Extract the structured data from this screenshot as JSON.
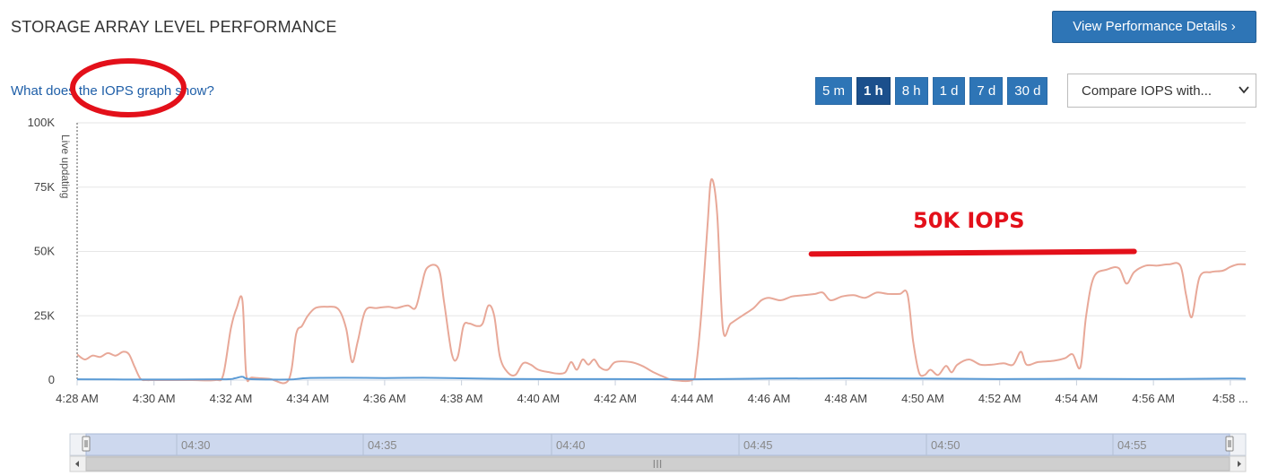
{
  "header": {
    "title": "STORAGE ARRAY LEVEL PERFORMANCE",
    "details_button": "View Performance Details ›"
  },
  "toolbar": {
    "help_link": "What does the IOPS graph show?",
    "ranges": [
      {
        "label": "5 m",
        "active": false
      },
      {
        "label": "1 h",
        "active": true
      },
      {
        "label": "8 h",
        "active": false
      },
      {
        "label": "1 d",
        "active": false
      },
      {
        "label": "7 d",
        "active": false
      },
      {
        "label": "30 d",
        "active": false
      }
    ],
    "compare": {
      "label": "Compare IOPS with...",
      "icon": "chevron-down-icon"
    }
  },
  "chart_data": {
    "type": "line",
    "y_ticks": [
      {
        "value": 0,
        "label": "0"
      },
      {
        "value": 25000,
        "label": "25K"
      },
      {
        "value": 50000,
        "label": "50K"
      },
      {
        "value": 75000,
        "label": "75K"
      },
      {
        "value": 100000,
        "label": "100K"
      }
    ],
    "ylim": [
      0,
      100000
    ],
    "x_unit": "minutes after 4:28 AM",
    "xlim": [
      0,
      30.4
    ],
    "x_ticks": [
      {
        "value": 0,
        "label": "4:28 AM"
      },
      {
        "value": 2,
        "label": "4:30 AM"
      },
      {
        "value": 4,
        "label": "4:32 AM"
      },
      {
        "value": 6,
        "label": "4:34 AM"
      },
      {
        "value": 8,
        "label": "4:36 AM"
      },
      {
        "value": 10,
        "label": "4:38 AM"
      },
      {
        "value": 12,
        "label": "4:40 AM"
      },
      {
        "value": 14,
        "label": "4:42 AM"
      },
      {
        "value": 16,
        "label": "4:44 AM"
      },
      {
        "value": 18,
        "label": "4:46 AM"
      },
      {
        "value": 20,
        "label": "4:48 AM"
      },
      {
        "value": 22,
        "label": "4:50 AM"
      },
      {
        "value": 24,
        "label": "4:52 AM"
      },
      {
        "value": 26,
        "label": "4:54 AM"
      },
      {
        "value": 28,
        "label": "4:56 AM"
      },
      {
        "value": 30,
        "label": "4:58 ..."
      }
    ],
    "live_label": "Live updating",
    "grid": true,
    "series": [
      {
        "color": "#e8a898",
        "points": [
          [
            0,
            10000
          ],
          [
            0.2,
            8000
          ],
          [
            0.4,
            9500
          ],
          [
            0.6,
            9000
          ],
          [
            0.8,
            10500
          ],
          [
            1,
            9500
          ],
          [
            1.2,
            11000
          ],
          [
            1.35,
            10000
          ],
          [
            1.5,
            5000
          ],
          [
            1.65,
            500
          ],
          [
            1.8,
            0
          ],
          [
            2,
            0
          ],
          [
            2.5,
            0
          ],
          [
            3,
            0
          ],
          [
            3.6,
            0
          ],
          [
            3.8,
            2000
          ],
          [
            4,
            20000
          ],
          [
            4.15,
            28000
          ],
          [
            4.3,
            31000
          ],
          [
            4.4,
            2000
          ],
          [
            4.55,
            1000
          ],
          [
            5,
            500
          ],
          [
            5.5,
            0
          ],
          [
            5.7,
            18000
          ],
          [
            5.85,
            21000
          ],
          [
            6,
            25000
          ],
          [
            6.2,
            28000
          ],
          [
            6.5,
            28500
          ],
          [
            6.8,
            27500
          ],
          [
            7,
            20000
          ],
          [
            7.15,
            7000
          ],
          [
            7.3,
            15000
          ],
          [
            7.5,
            27000
          ],
          [
            7.8,
            28000
          ],
          [
            8.1,
            28500
          ],
          [
            8.3,
            28000
          ],
          [
            8.6,
            29000
          ],
          [
            8.8,
            28000
          ],
          [
            8.95,
            36000
          ],
          [
            9.1,
            43500
          ],
          [
            9.4,
            43500
          ],
          [
            9.55,
            30000
          ],
          [
            9.75,
            10000
          ],
          [
            9.9,
            9000
          ],
          [
            10.05,
            21000
          ],
          [
            10.2,
            22000
          ],
          [
            10.4,
            21000
          ],
          [
            10.55,
            22000
          ],
          [
            10.7,
            29000
          ],
          [
            10.85,
            25000
          ],
          [
            11,
            9000
          ],
          [
            11.2,
            3000
          ],
          [
            11.4,
            2000
          ],
          [
            11.6,
            6500
          ],
          [
            11.8,
            6000
          ],
          [
            12,
            4000
          ],
          [
            12.3,
            3000
          ],
          [
            12.5,
            2500
          ],
          [
            12.7,
            3000
          ],
          [
            12.85,
            7000
          ],
          [
            13,
            4000
          ],
          [
            13.15,
            8000
          ],
          [
            13.3,
            6000
          ],
          [
            13.45,
            8000
          ],
          [
            13.6,
            5000
          ],
          [
            13.8,
            4000
          ],
          [
            14,
            7000
          ],
          [
            14.4,
            7000
          ],
          [
            14.7,
            5500
          ],
          [
            15,
            3000
          ],
          [
            15.3,
            1000
          ],
          [
            15.5,
            0
          ],
          [
            16,
            0
          ],
          [
            16.1,
            5000
          ],
          [
            16.25,
            28000
          ],
          [
            16.4,
            60000
          ],
          [
            16.5,
            78000
          ],
          [
            16.65,
            65000
          ],
          [
            16.8,
            20000
          ],
          [
            17,
            22000
          ],
          [
            17.3,
            25000
          ],
          [
            17.6,
            28000
          ],
          [
            17.8,
            31000
          ],
          [
            18,
            32000
          ],
          [
            18.3,
            31000
          ],
          [
            18.6,
            32500
          ],
          [
            18.9,
            33000
          ],
          [
            19.2,
            33500
          ],
          [
            19.4,
            34000
          ],
          [
            19.6,
            31000
          ],
          [
            19.9,
            32500
          ],
          [
            20.2,
            33000
          ],
          [
            20.5,
            32000
          ],
          [
            20.8,
            34000
          ],
          [
            21.1,
            33500
          ],
          [
            21.4,
            33500
          ],
          [
            21.6,
            33500
          ],
          [
            21.75,
            15000
          ],
          [
            21.9,
            3000
          ],
          [
            22.05,
            2000
          ],
          [
            22.2,
            4000
          ],
          [
            22.4,
            2000
          ],
          [
            22.6,
            5500
          ],
          [
            22.75,
            3000
          ],
          [
            22.9,
            6000
          ],
          [
            23.2,
            8000
          ],
          [
            23.5,
            6000
          ],
          [
            23.8,
            6000
          ],
          [
            24.1,
            6500
          ],
          [
            24.35,
            6000
          ],
          [
            24.55,
            11000
          ],
          [
            24.7,
            6000
          ],
          [
            25,
            7000
          ],
          [
            25.4,
            7500
          ],
          [
            25.7,
            8500
          ],
          [
            25.9,
            10000
          ],
          [
            26.1,
            5000
          ],
          [
            26.25,
            25000
          ],
          [
            26.45,
            40000
          ],
          [
            26.8,
            43000
          ],
          [
            27.1,
            43500
          ],
          [
            27.3,
            37500
          ],
          [
            27.5,
            42000
          ],
          [
            27.8,
            44500
          ],
          [
            28.1,
            44500
          ],
          [
            28.4,
            45000
          ],
          [
            28.7,
            44500
          ],
          [
            28.85,
            33000
          ],
          [
            29,
            24500
          ],
          [
            29.2,
            40000
          ],
          [
            29.5,
            42000
          ],
          [
            29.8,
            42500
          ],
          [
            30,
            44000
          ],
          [
            30.2,
            45000
          ],
          [
            30.4,
            45000
          ]
        ]
      },
      {
        "color": "#5b9bd5",
        "points": [
          [
            0,
            300
          ],
          [
            2,
            200
          ],
          [
            3.8,
            300
          ],
          [
            4.1,
            700
          ],
          [
            4.3,
            1300
          ],
          [
            4.5,
            400
          ],
          [
            5.5,
            200
          ],
          [
            6,
            800
          ],
          [
            7,
            900
          ],
          [
            8,
            800
          ],
          [
            9,
            900
          ],
          [
            10,
            700
          ],
          [
            11,
            500
          ],
          [
            12,
            400
          ],
          [
            14,
            400
          ],
          [
            16,
            300
          ],
          [
            18,
            600
          ],
          [
            20,
            700
          ],
          [
            22,
            600
          ],
          [
            24,
            400
          ],
          [
            26,
            500
          ],
          [
            28,
            400
          ],
          [
            30,
            600
          ],
          [
            30.4,
            500
          ]
        ]
      }
    ],
    "annotations": [
      {
        "type": "text",
        "text": "50K IOPS",
        "color": "#e3101a"
      },
      {
        "type": "line",
        "color": "#e3101a",
        "x": [
          19.1,
          27.5
        ],
        "y": [
          49000,
          50000
        ]
      },
      {
        "type": "ellipse",
        "color": "#e3101a",
        "around": "IOPS graph"
      }
    ]
  },
  "navigator": {
    "labels": [
      "04:30",
      "04:35",
      "04:40",
      "04:45",
      "04:50",
      "04:55"
    ],
    "scrollbar_grip": "III"
  }
}
